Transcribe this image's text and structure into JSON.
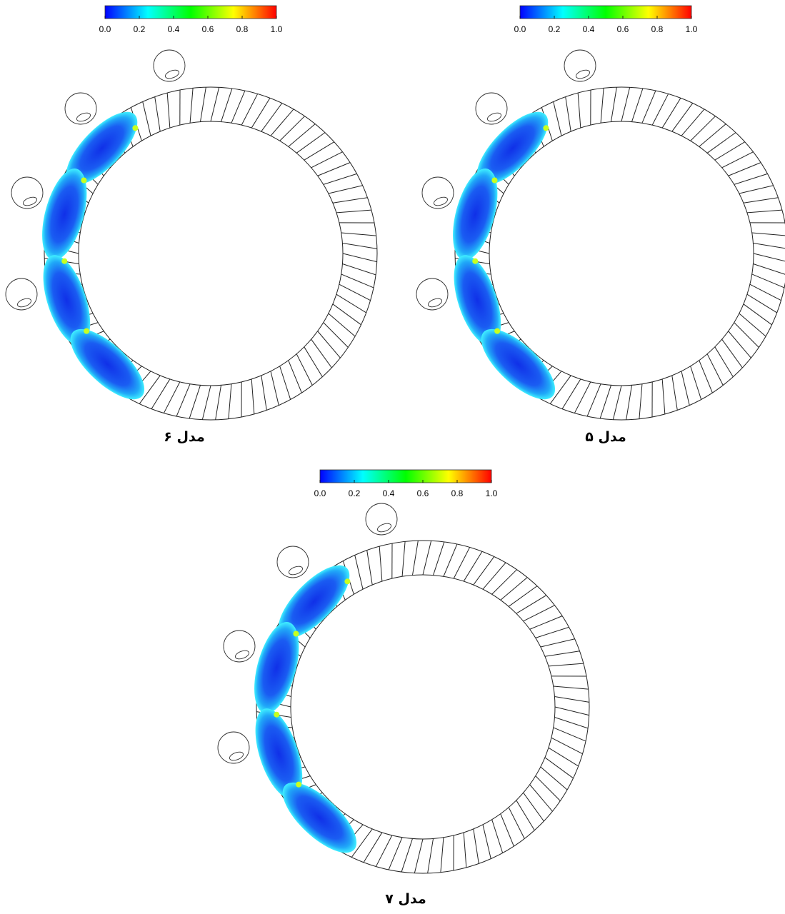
{
  "panels": [
    {
      "caption": "مدل ۶",
      "colorbar": {
        "ticks": [
          {
            "value": 0,
            "label": "0.0"
          },
          {
            "value": 0.2,
            "label": "0.2"
          },
          {
            "value": 0.4,
            "label": "0.4"
          },
          {
            "value": 0.6,
            "label": "0.6"
          },
          {
            "value": 0.8,
            "label": "0.8"
          },
          {
            "value": 1,
            "label": "1.0"
          }
        ]
      }
    },
    {
      "caption": "مدل ۵",
      "colorbar": {
        "ticks": [
          {
            "value": 0,
            "label": "0.0"
          },
          {
            "value": 0.2,
            "label": "0.2"
          },
          {
            "value": 0.4,
            "label": "0.4"
          },
          {
            "value": 0.6,
            "label": "0.6"
          },
          {
            "value": 0.8,
            "label": "0.8"
          },
          {
            "value": 1,
            "label": "1.0"
          }
        ]
      }
    },
    {
      "caption": "مدل ۷",
      "colorbar": {
        "ticks": [
          {
            "value": 0,
            "label": "0.0"
          },
          {
            "value": 0.2,
            "label": "0.2"
          },
          {
            "value": 0.4,
            "label": "0.4"
          },
          {
            "value": 0.6,
            "label": "0.6"
          },
          {
            "value": 0.8,
            "label": "0.8"
          },
          {
            "value": 1,
            "label": "1.0"
          }
        ]
      }
    }
  ]
}
